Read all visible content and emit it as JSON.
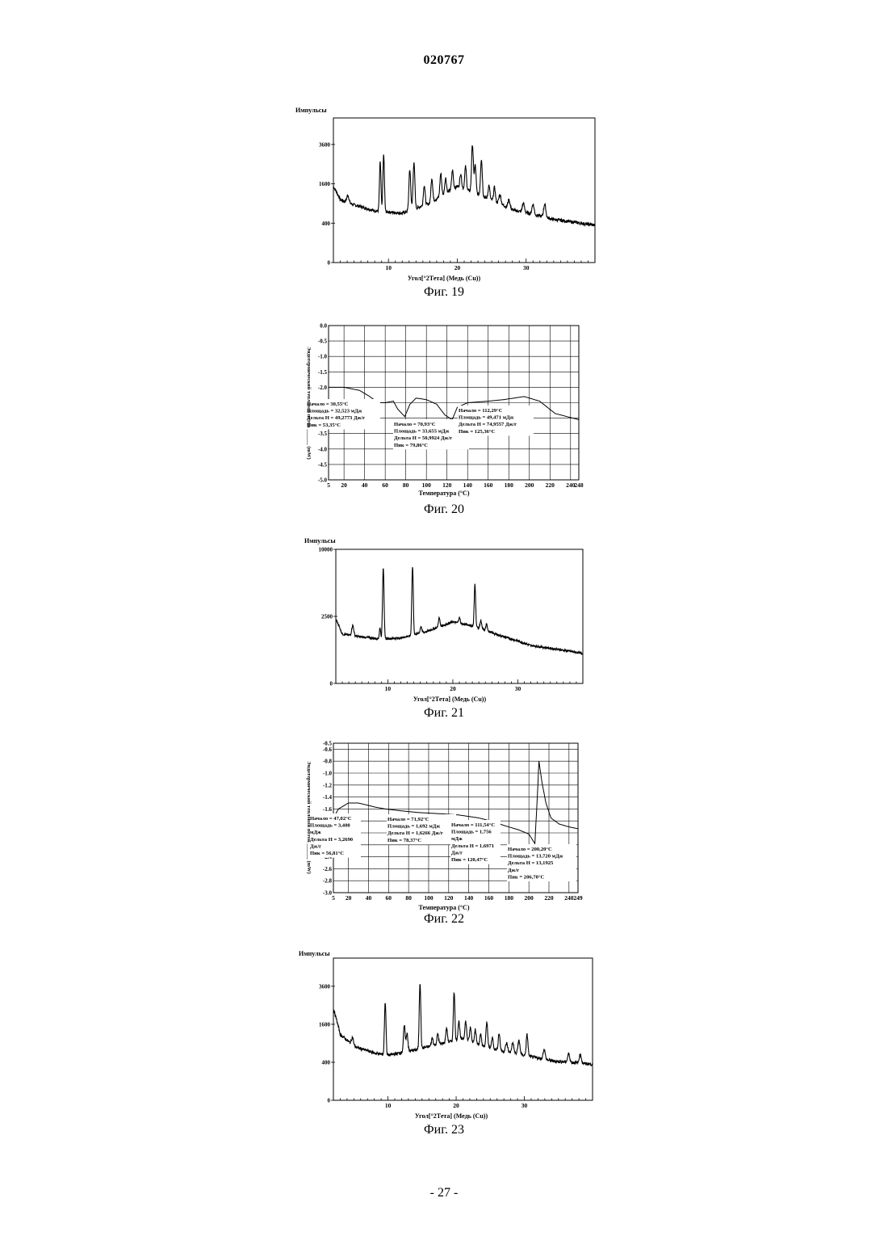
{
  "page_header": "020767",
  "page_footer": "- 27 -",
  "figures": {
    "f19": {
      "caption": "Фиг. 19"
    },
    "f20": {
      "caption": "Фиг. 20"
    },
    "f21": {
      "caption": "Фиг. 21"
    },
    "f22": {
      "caption": "Фиг. 22"
    },
    "f23": {
      "caption": "Фиг. 23"
    }
  },
  "chart_data": [
    {
      "id": "fig19",
      "type": "line",
      "ylabel": "Импульсы",
      "xlabel": "Угол[°2Тета] (Медь (Cu))",
      "xlim": [
        2,
        40
      ],
      "ylim": [
        0,
        5400
      ],
      "scale": "sqrt",
      "xticks": [
        10,
        20,
        30
      ],
      "yticks": [
        0,
        400,
        1600,
        3600
      ],
      "baseline": [
        [
          2,
          1500
        ],
        [
          3,
          1020
        ],
        [
          5,
          860
        ],
        [
          8,
          690
        ],
        [
          12,
          630
        ],
        [
          16,
          900
        ],
        [
          20,
          1500
        ],
        [
          24,
          1100
        ],
        [
          28,
          720
        ],
        [
          34,
          480
        ],
        [
          40,
          360
        ]
      ],
      "peaks": [
        [
          4.1,
          240,
          0.15
        ],
        [
          8.8,
          1900,
          0.1
        ],
        [
          9.3,
          2300,
          0.1
        ],
        [
          13.1,
          1500,
          0.12
        ],
        [
          13.7,
          1800,
          0.12
        ],
        [
          15.2,
          700,
          0.12
        ],
        [
          16.3,
          900,
          0.12
        ],
        [
          17.6,
          900,
          0.12
        ],
        [
          18.3,
          600,
          0.12
        ],
        [
          19.3,
          800,
          0.12
        ],
        [
          20.5,
          600,
          0.12
        ],
        [
          21.2,
          1000,
          0.12
        ],
        [
          22.2,
          2300,
          0.12
        ],
        [
          22.6,
          1200,
          0.12
        ],
        [
          23.5,
          1600,
          0.12
        ],
        [
          24.6,
          500,
          0.12
        ],
        [
          25.4,
          500,
          0.12
        ],
        [
          26.2,
          300,
          0.15
        ],
        [
          27.5,
          250,
          0.15
        ],
        [
          29.6,
          250,
          0.15
        ],
        [
          31.0,
          280,
          0.15
        ],
        [
          32.7,
          350,
          0.15
        ]
      ]
    },
    {
      "id": "fig20",
      "type": "line",
      "ylabel": "Эндотермический тепловой поток ______ (mW)",
      "xlabel": "Температура (°C)",
      "xlim": [
        5,
        248
      ],
      "ylim": [
        -5.0,
        0.0
      ],
      "xticks": [
        5,
        20,
        40,
        60,
        80,
        100,
        120,
        140,
        160,
        180,
        200,
        220,
        240,
        248
      ],
      "yticks": [
        0.0,
        -0.5,
        -1.0,
        -1.5,
        -2.0,
        -2.5,
        -3.0,
        -3.5,
        -4.0,
        -4.5,
        -5.0
      ],
      "curve": [
        [
          5,
          -2.0
        ],
        [
          20,
          -2.0
        ],
        [
          35,
          -2.1
        ],
        [
          45,
          -2.3
        ],
        [
          53,
          -2.5
        ],
        [
          60,
          -2.5
        ],
        [
          68,
          -2.45
        ],
        [
          72,
          -2.7
        ],
        [
          79,
          -2.95
        ],
        [
          84,
          -2.55
        ],
        [
          90,
          -2.35
        ],
        [
          100,
          -2.4
        ],
        [
          110,
          -2.55
        ],
        [
          118,
          -2.9
        ],
        [
          125,
          -3.05
        ],
        [
          130,
          -2.65
        ],
        [
          140,
          -2.5
        ],
        [
          160,
          -2.45
        ],
        [
          175,
          -2.4
        ],
        [
          195,
          -2.3
        ],
        [
          210,
          -2.45
        ],
        [
          225,
          -2.85
        ],
        [
          248,
          -3.05
        ]
      ],
      "annotations": [
        {
          "lines": [
            "Начало = 30,55°C",
            "Площадь = 32,523 мДж",
            "Дельта H = 49,2773 Дж/г",
            "Пик = 53,35°C"
          ]
        },
        {
          "lines": [
            "Начало = 70,93°C",
            "Площадь = 33,655 мДж",
            "Дельта H = 50,9924 Дж/г",
            "Пик = 79,86°C"
          ]
        },
        {
          "lines": [
            "Начало = 112,29°C",
            "Площадь = 49,471 мДж",
            "Дельта H = 74,9557 Дж/г",
            "Пик = 125,36°C"
          ]
        }
      ]
    },
    {
      "id": "fig21",
      "type": "line",
      "ylabel": "Импульсы",
      "xlabel": "Угол[°2Тета] (Медь (Cu))",
      "xlim": [
        2,
        40
      ],
      "ylim": [
        0,
        10000
      ],
      "scale": "sqrt",
      "xticks": [
        10,
        20,
        30
      ],
      "yticks": [
        0,
        2500,
        10000
      ],
      "baseline": [
        [
          2,
          2300
        ],
        [
          3,
          1350
        ],
        [
          6,
          1200
        ],
        [
          9,
          1100
        ],
        [
          12,
          1150
        ],
        [
          16,
          1500
        ],
        [
          20,
          2100
        ],
        [
          23,
          1850
        ],
        [
          27,
          1300
        ],
        [
          32,
          800
        ],
        [
          40,
          500
        ]
      ],
      "peaks": [
        [
          4.6,
          600,
          0.15
        ],
        [
          8.8,
          600,
          0.1
        ],
        [
          9.3,
          6400,
          0.1
        ],
        [
          13.8,
          6300,
          0.1
        ],
        [
          15.1,
          400,
          0.12
        ],
        [
          17.9,
          600,
          0.12
        ],
        [
          21.0,
          400,
          0.12
        ],
        [
          23.4,
          3700,
          0.1
        ],
        [
          24.3,
          500,
          0.12
        ],
        [
          25.2,
          400,
          0.12
        ]
      ]
    },
    {
      "id": "fig22",
      "type": "line",
      "ylabel": "Эндотермический тепловой поток ______ (mW)",
      "xlabel": "Температура (°C)",
      "xlim": [
        5,
        249
      ],
      "ylim": [
        -3.0,
        -0.5
      ],
      "xticks": [
        5,
        20,
        40,
        60,
        80,
        100,
        120,
        140,
        160,
        180,
        200,
        220,
        240,
        249
      ],
      "yticks": [
        -0.5,
        -0.6,
        -0.8,
        -1.0,
        -1.2,
        -1.4,
        -1.6,
        -1.8,
        -2.0,
        -2.2,
        -2.4,
        -2.6,
        -2.8,
        -3.0
      ],
      "curve": [
        [
          5,
          -1.75
        ],
        [
          10,
          -1.6
        ],
        [
          20,
          -1.5
        ],
        [
          30,
          -1.5
        ],
        [
          47,
          -1.57
        ],
        [
          57,
          -1.6
        ],
        [
          72,
          -1.63
        ],
        [
          90,
          -1.66
        ],
        [
          112,
          -1.68
        ],
        [
          130,
          -1.7
        ],
        [
          150,
          -1.75
        ],
        [
          162,
          -1.8
        ],
        [
          176,
          -1.88
        ],
        [
          190,
          -1.95
        ],
        [
          200,
          -2.02
        ],
        [
          206,
          -2.18
        ],
        [
          209,
          -1.2
        ],
        [
          210,
          -0.8
        ],
        [
          213,
          -1.15
        ],
        [
          217,
          -1.5
        ],
        [
          222,
          -1.75
        ],
        [
          230,
          -1.85
        ],
        [
          240,
          -1.9
        ],
        [
          249,
          -1.93
        ]
      ],
      "annotations": [
        {
          "lines": [
            "Начало = 47,02°C",
            "Площадь = 3,400",
            "мДж",
            "Дельта H = 3,2690",
            "Дж/г",
            "Пик = 56,81°C"
          ]
        },
        {
          "lines": [
            "Начало = 71,92°C",
            "Площадь = 1,692 мДж",
            "Дельта H = 1,6266 Дж/г",
            "Пик = 78,37°C"
          ]
        },
        {
          "lines": [
            "Начало = 111,54°C",
            "Площадь = 1,756",
            "мДж",
            "Дельта H = 1,6971",
            "Дж/г",
            "Пик = 120,47°C"
          ]
        },
        {
          "lines": [
            "Начало = 200,20°C",
            "Площадь = 13,720 мДж",
            "Дельта H = 13,1925",
            "Дж/г",
            "Пик = 206,70°C"
          ]
        }
      ]
    },
    {
      "id": "fig23",
      "type": "line",
      "ylabel": "Импульсы",
      "xlabel": "Угол[°2Тета] (Медь (Cu))",
      "xlim": [
        2,
        40
      ],
      "ylim": [
        0,
        5600
      ],
      "scale": "sqrt",
      "xticks": [
        10,
        20,
        30
      ],
      "yticks": [
        0,
        400,
        1600,
        3600
      ],
      "baseline": [
        [
          2,
          2300
        ],
        [
          3,
          1200
        ],
        [
          5,
          800
        ],
        [
          8,
          620
        ],
        [
          10,
          560
        ],
        [
          14,
          700
        ],
        [
          18,
          900
        ],
        [
          21,
          1050
        ],
        [
          24,
          800
        ],
        [
          28,
          620
        ],
        [
          34,
          430
        ],
        [
          40,
          360
        ]
      ],
      "peaks": [
        [
          4.8,
          250,
          0.15
        ],
        [
          9.6,
          2100,
          0.1
        ],
        [
          12.4,
          900,
          0.12
        ],
        [
          12.8,
          600,
          0.12
        ],
        [
          14.7,
          3100,
          0.1
        ],
        [
          16.5,
          250,
          0.12
        ],
        [
          17.3,
          350,
          0.12
        ],
        [
          18.6,
          500,
          0.12
        ],
        [
          19.7,
          2300,
          0.1
        ],
        [
          20.4,
          700,
          0.12
        ],
        [
          21.4,
          700,
          0.12
        ],
        [
          22.1,
          500,
          0.12
        ],
        [
          22.8,
          500,
          0.12
        ],
        [
          23.6,
          350,
          0.12
        ],
        [
          24.5,
          900,
          0.12
        ],
        [
          25.3,
          350,
          0.12
        ],
        [
          26.3,
          550,
          0.12
        ],
        [
          27.4,
          250,
          0.15
        ],
        [
          28.3,
          300,
          0.15
        ],
        [
          29.2,
          400,
          0.15
        ],
        [
          30.4,
          650,
          0.12
        ],
        [
          32.9,
          250,
          0.15
        ],
        [
          36.5,
          200,
          0.15
        ],
        [
          38.2,
          200,
          0.15
        ]
      ]
    }
  ]
}
